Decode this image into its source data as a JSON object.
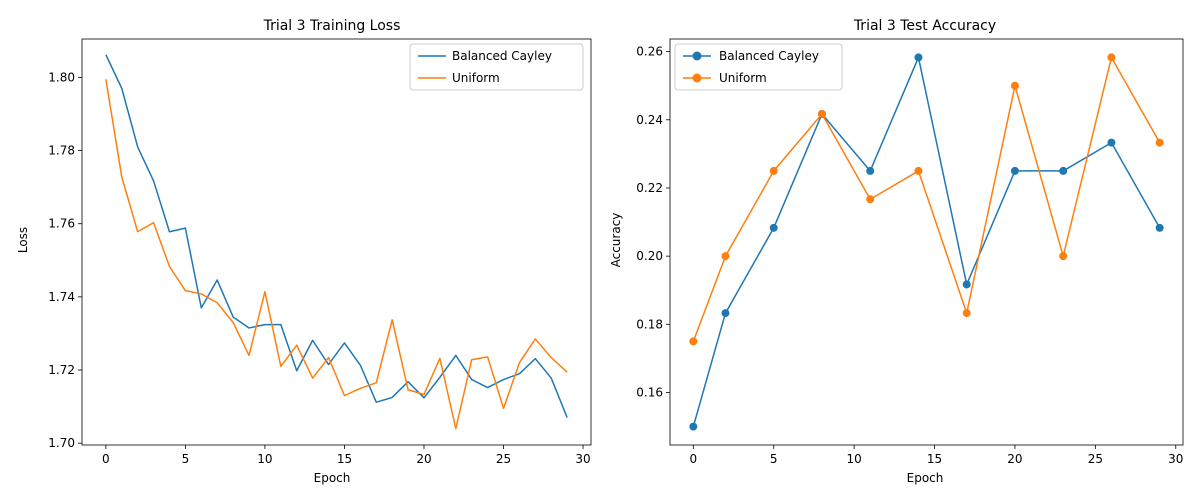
{
  "colors": {
    "series1": "#1f77b4",
    "series2": "#ff7f0e"
  },
  "chart_data": [
    {
      "type": "line",
      "title": "Trial 3 Training Loss",
      "xlabel": "Epoch",
      "ylabel": "Loss",
      "xlim": [
        -1.5,
        30.5
      ],
      "ylim": [
        1.6995,
        1.8105
      ],
      "xticks": [
        0,
        5,
        10,
        15,
        20,
        25,
        30
      ],
      "yticks": [
        1.7,
        1.72,
        1.74,
        1.76,
        1.78,
        1.8
      ],
      "ytick_decimals": 2,
      "markers": false,
      "grid": false,
      "legend": "top-right",
      "x": [
        0,
        1,
        2,
        3,
        4,
        5,
        6,
        7,
        8,
        9,
        10,
        11,
        12,
        13,
        14,
        15,
        16,
        17,
        18,
        19,
        20,
        21,
        22,
        23,
        24,
        25,
        26,
        27,
        28,
        29
      ],
      "series": [
        {
          "name": "Balanced Cayley",
          "color": "#1f77b4",
          "values": [
            1.8062,
            1.797,
            1.781,
            1.7717,
            1.7578,
            1.7588,
            1.737,
            1.7446,
            1.7345,
            1.7315,
            1.7324,
            1.7324,
            1.7198,
            1.7281,
            1.7215,
            1.7274,
            1.7213,
            1.7112,
            1.7125,
            1.7168,
            1.7124,
            1.718,
            1.724,
            1.7174,
            1.7152,
            1.7174,
            1.719,
            1.7231,
            1.7178,
            1.707
          ]
        },
        {
          "name": "Uniform",
          "color": "#ff7f0e",
          "values": [
            1.7995,
            1.7728,
            1.7578,
            1.7603,
            1.7483,
            1.7417,
            1.7408,
            1.7384,
            1.733,
            1.724,
            1.7414,
            1.721,
            1.7268,
            1.7178,
            1.7234,
            1.713,
            1.715,
            1.7165,
            1.7337,
            1.7146,
            1.7133,
            1.7232,
            1.704,
            1.7228,
            1.7236,
            1.7095,
            1.722,
            1.7285,
            1.7234,
            1.7194
          ]
        }
      ]
    },
    {
      "type": "line",
      "title": "Trial 3 Test Accuracy",
      "xlabel": "Epoch",
      "ylabel": "Accuracy",
      "xlim": [
        -1.45,
        30.45
      ],
      "ylim": [
        0.1446,
        0.2637
      ],
      "xticks": [
        0,
        5,
        10,
        15,
        20,
        25,
        30
      ],
      "yticks": [
        0.16,
        0.18,
        0.2,
        0.22,
        0.24,
        0.26
      ],
      "ytick_decimals": 2,
      "markers": true,
      "grid": false,
      "legend": "top-left",
      "x": [
        0,
        2,
        5,
        8,
        11,
        14,
        17,
        20,
        23,
        26,
        29
      ],
      "series": [
        {
          "name": "Balanced Cayley",
          "color": "#1f77b4",
          "values": [
            0.15,
            0.1833,
            0.2083,
            0.2417,
            0.225,
            0.2583,
            0.1917,
            0.225,
            0.225,
            0.2333,
            0.2083
          ]
        },
        {
          "name": "Uniform",
          "color": "#ff7f0e",
          "values": [
            0.175,
            0.2,
            0.225,
            0.2417,
            0.2167,
            0.225,
            0.1833,
            0.25,
            0.2,
            0.2583,
            0.2333
          ]
        }
      ]
    }
  ]
}
